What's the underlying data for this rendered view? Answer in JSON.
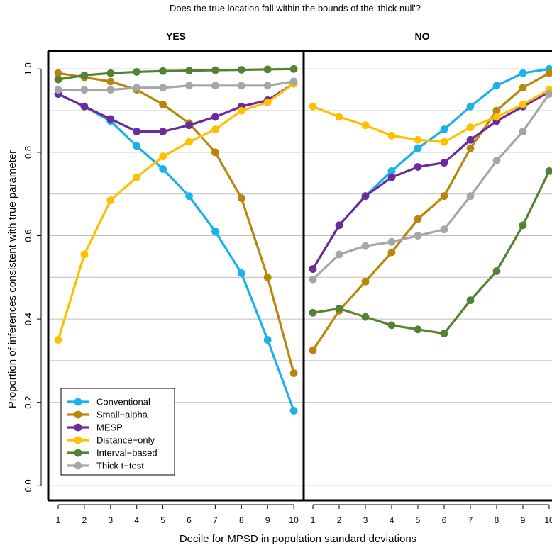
{
  "chart_data": {
    "type": "line",
    "title": "Does the true location fall within the bounds of the 'thick null'?",
    "xlabel": "Decile for MPSD in population standard deviations",
    "ylabel": "Proportion of inferences consistent with true parameter",
    "ylim": [
      0,
      1
    ],
    "yticks": [
      "0.0",
      "0.2",
      "0.4",
      "0.6",
      "0.8",
      "1.0"
    ],
    "x_ticks": [
      "1",
      "2",
      "3",
      "4",
      "5",
      "6",
      "7",
      "8",
      "9",
      "10"
    ],
    "grid": true,
    "legend_position": "bottom-left",
    "panels": [
      {
        "label": "YES",
        "series": [
          {
            "name": "Conventional",
            "color": "#1AB2E8",
            "values": [
              0.94,
              0.91,
              0.875,
              0.815,
              0.76,
              0.695,
              0.61,
              0.51,
              0.35,
              0.18
            ]
          },
          {
            "name": "Small−alpha",
            "color": "#B8860B",
            "values": [
              0.99,
              0.98,
              0.97,
              0.95,
              0.915,
              0.87,
              0.8,
              0.69,
              0.5,
              0.27
            ]
          },
          {
            "name": "MESP",
            "color": "#6A2C9C",
            "values": [
              0.94,
              0.91,
              0.88,
              0.85,
              0.85,
              0.865,
              0.885,
              0.91,
              0.925,
              0.965
            ]
          },
          {
            "name": "Distance−only",
            "color": "#FFC000",
            "values": [
              0.35,
              0.555,
              0.685,
              0.74,
              0.79,
              0.825,
              0.855,
              0.9,
              0.92,
              0.965
            ]
          },
          {
            "name": "Interval−based",
            "color": "#548235",
            "values": [
              0.975,
              0.985,
              0.99,
              0.993,
              0.995,
              0.996,
              0.997,
              0.998,
              0.999,
              1.0
            ]
          },
          {
            "name": "Thick t−test",
            "color": "#A6A6A6",
            "values": [
              0.95,
              0.95,
              0.95,
              0.955,
              0.955,
              0.96,
              0.96,
              0.96,
              0.96,
              0.97
            ]
          }
        ]
      },
      {
        "label": "NO",
        "series": [
          {
            "name": "Conventional",
            "color": "#1AB2E8",
            "values": [
              null,
              null,
              0.695,
              0.755,
              0.81,
              0.855,
              0.91,
              0.96,
              0.99,
              1.0
            ]
          },
          {
            "name": "Small−alpha",
            "color": "#B8860B",
            "values": [
              0.325,
              0.42,
              0.49,
              0.56,
              0.64,
              0.695,
              0.81,
              0.9,
              0.955,
              0.99
            ]
          },
          {
            "name": "MESP",
            "color": "#6A2C9C",
            "values": [
              0.52,
              0.625,
              0.695,
              0.74,
              0.765,
              0.775,
              0.83,
              0.875,
              0.91,
              0.945
            ]
          },
          {
            "name": "Distance−only",
            "color": "#FFC000",
            "values": [
              0.91,
              0.885,
              0.865,
              0.84,
              0.83,
              0.825,
              0.86,
              0.885,
              0.915,
              0.95
            ]
          },
          {
            "name": "Interval−based",
            "color": "#548235",
            "values": [
              0.415,
              0.425,
              0.405,
              0.385,
              0.375,
              0.365,
              0.445,
              0.515,
              0.625,
              0.755
            ]
          },
          {
            "name": "Thick t−test",
            "color": "#A6A6A6",
            "values": [
              0.495,
              0.555,
              0.575,
              0.585,
              0.6,
              0.615,
              0.695,
              0.78,
              0.85,
              0.94
            ]
          }
        ]
      }
    ],
    "legend": [
      "Conventional",
      "Small−alpha",
      "MESP",
      "Distance−only",
      "Interval−based",
      "Thick t−test"
    ]
  }
}
